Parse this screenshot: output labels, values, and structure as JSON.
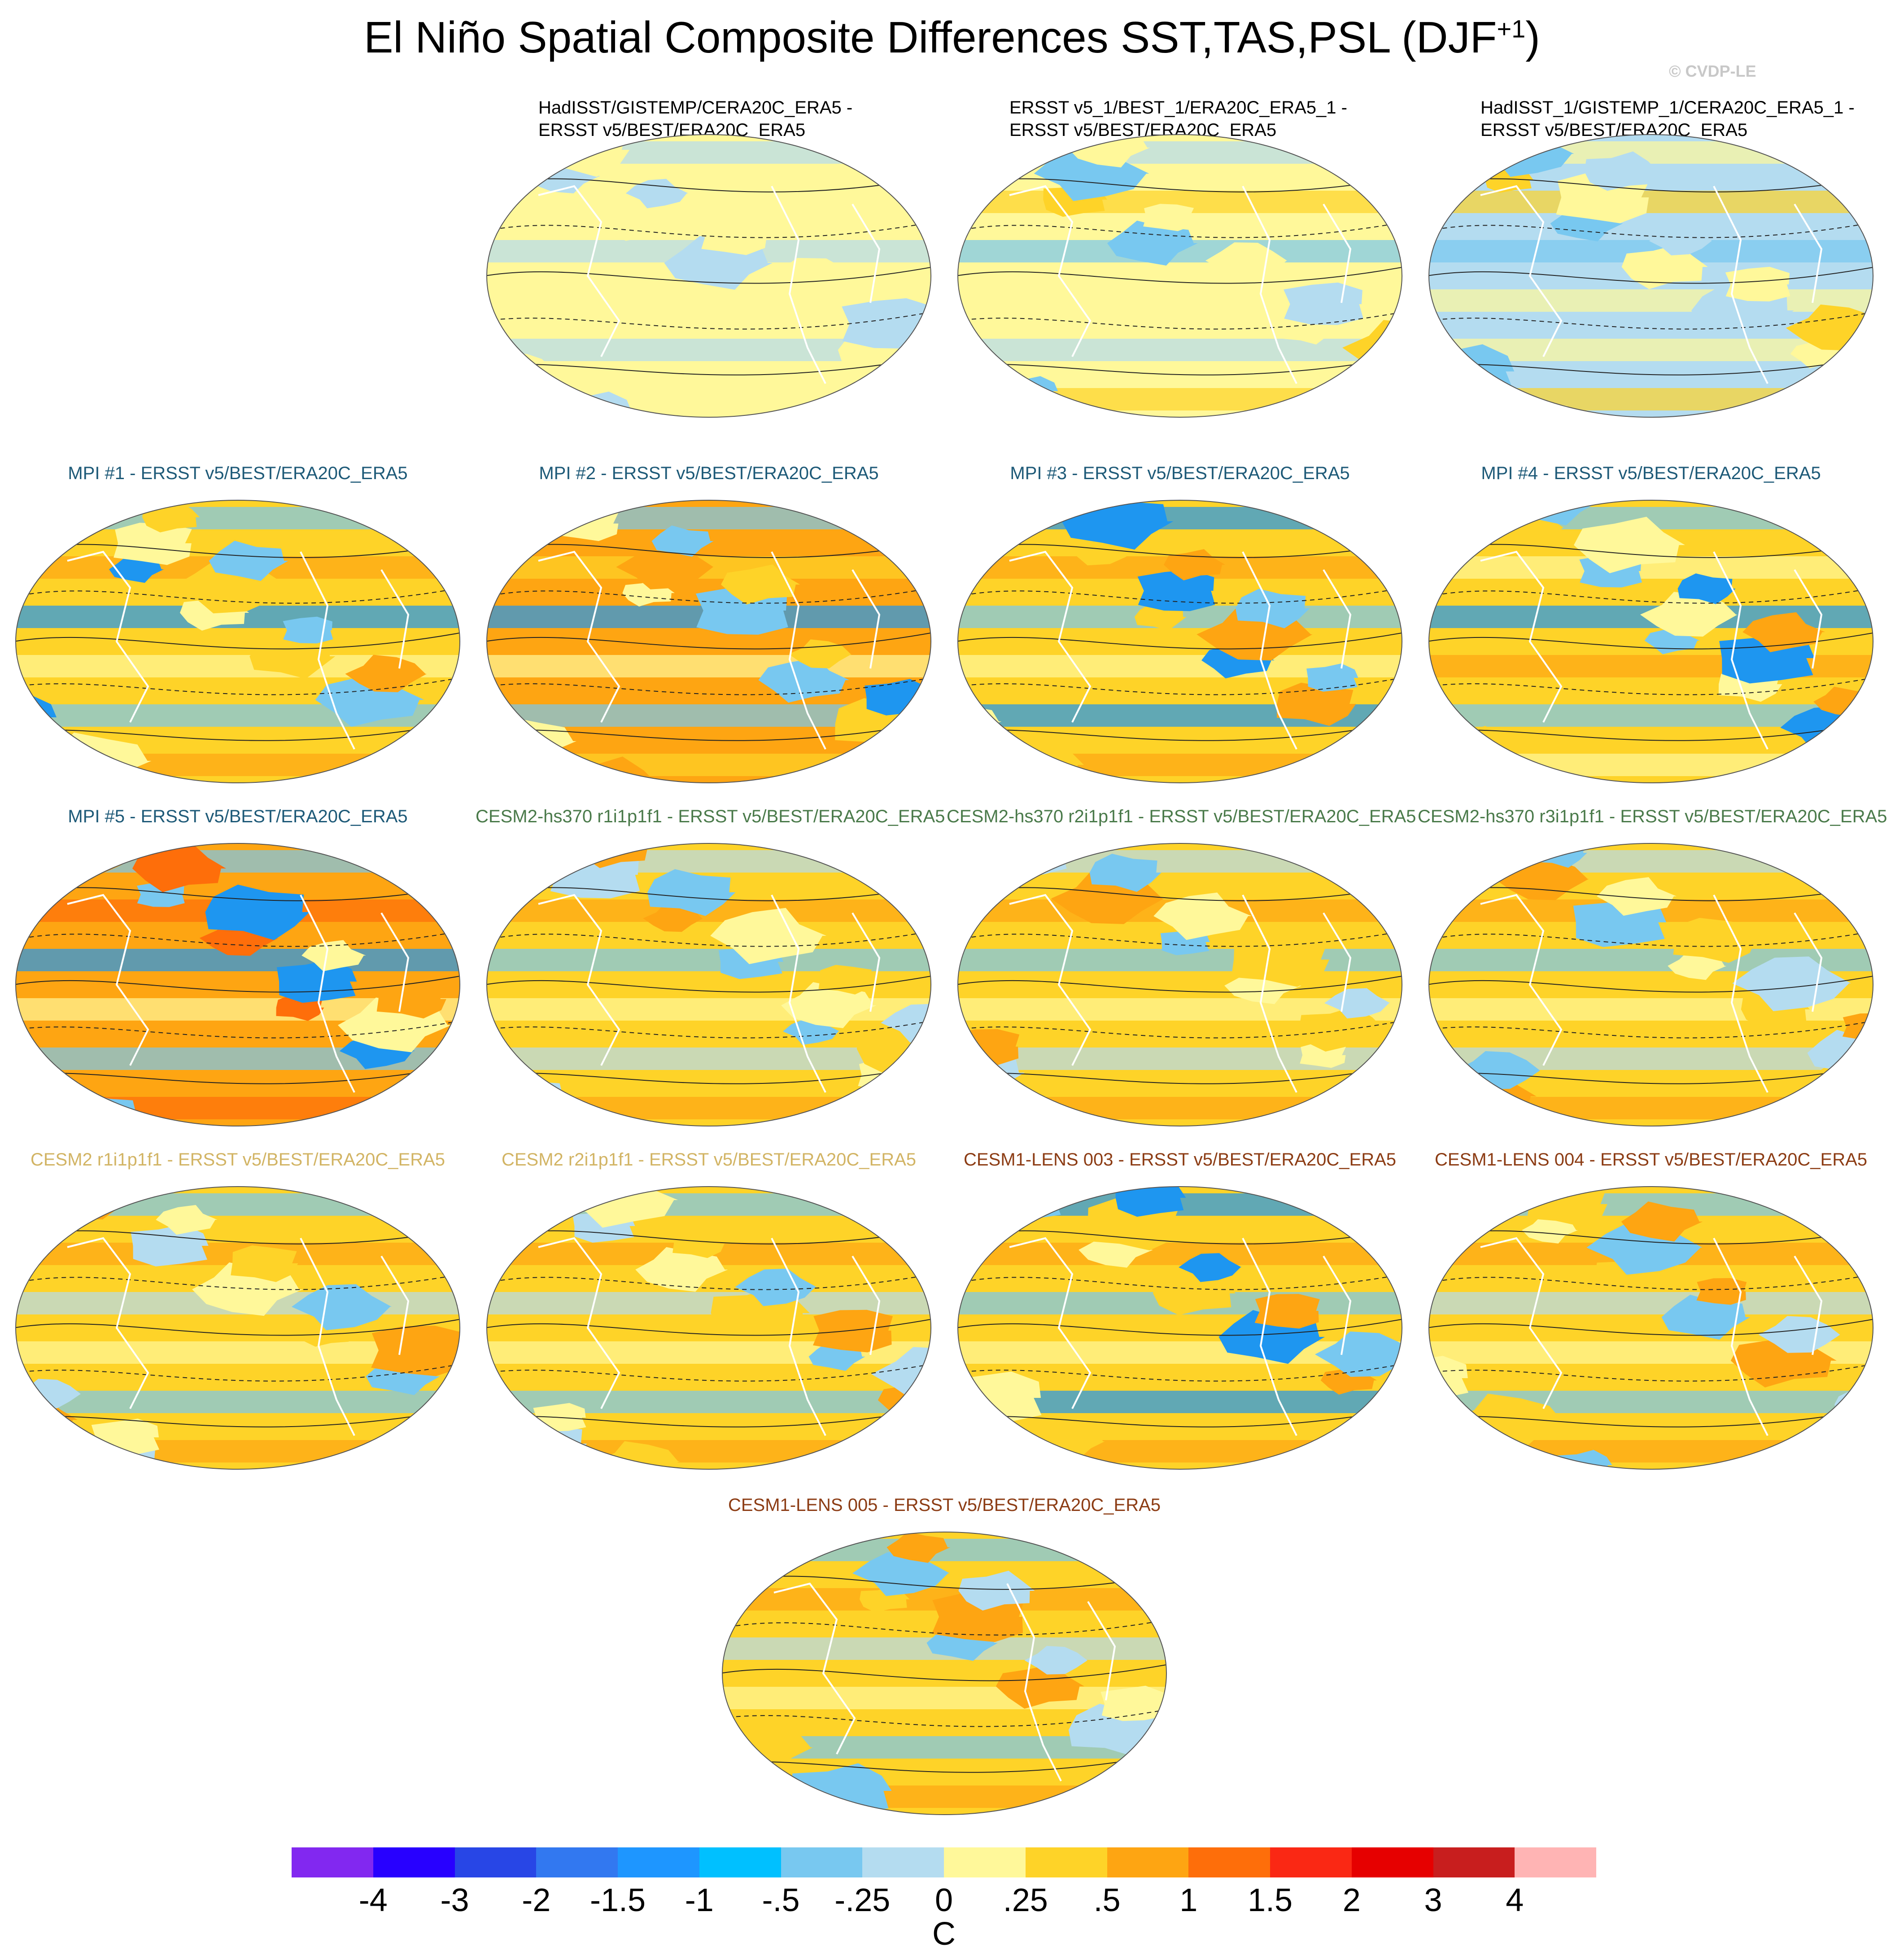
{
  "title": "El Niño Spatial Composite Differences SST,TAS,PSL (DJF",
  "title_sup": "+1",
  "title_close": ")",
  "credit": "© CVDP-LE",
  "panels": [
    {
      "title": "HadISST/GISTEMP/CERA20C_ERA5 -\nERSST v5/BEST/ERA20C_ERA5",
      "color": "#000000",
      "palette": [
        "#fff89a",
        "#b4dcf0",
        "#fff89a",
        "#b4dcf0",
        "#fff89a"
      ]
    },
    {
      "title": "ERSST v5_1/BEST_1/ERA20C_ERA5_1 -\nERSST v5/BEST/ERA20C_ERA5",
      "color": "#000000",
      "palette": [
        "#fff89a",
        "#b4dcf0",
        "#fed328",
        "#78c8f0",
        "#fff89a"
      ]
    },
    {
      "title": "HadISST_1/GISTEMP_1/CERA20C_ERA5_1 -\nERSST v5/BEST/ERA20C_ERA5",
      "color": "#000000",
      "palette": [
        "#b4dcf0",
        "#fff89a",
        "#fed328",
        "#78c8f0",
        "#fff89a"
      ]
    },
    {
      "title": "MPI #1 - ERSST v5/BEST/ERA20C_ERA5",
      "color": "#1e5a78",
      "palette": [
        "#fed328",
        "#78c8f0",
        "#fea512",
        "#1e96f0",
        "#fff89a"
      ]
    },
    {
      "title": "MPI #2 - ERSST v5/BEST/ERA20C_ERA5",
      "color": "#1e5a78",
      "palette": [
        "#fea512",
        "#78c8f0",
        "#fed328",
        "#1e96f0",
        "#fff89a"
      ]
    },
    {
      "title": "MPI #3 - ERSST v5/BEST/ERA20C_ERA5",
      "color": "#1e5a78",
      "palette": [
        "#fed328",
        "#1e96f0",
        "#fea512",
        "#78c8f0",
        "#fff89a"
      ]
    },
    {
      "title": "MPI #4 - ERSST v5/BEST/ERA20C_ERA5",
      "color": "#1e5a78",
      "palette": [
        "#fed328",
        "#78c8f0",
        "#fff89a",
        "#1e96f0",
        "#fea512"
      ]
    },
    {
      "title": "MPI #5 - ERSST v5/BEST/ERA20C_ERA5",
      "color": "#1e5a78",
      "palette": [
        "#fea512",
        "#78c8f0",
        "#fe6e0a",
        "#1e96f0",
        "#fff89a"
      ]
    },
    {
      "title": "CESM2-hs370 r1i1p1f1 - ERSST v5/BEST/ERA20C_ERA5",
      "color": "#4a7a4a",
      "palette": [
        "#fed328",
        "#b4dcf0",
        "#fea512",
        "#78c8f0",
        "#fff89a"
      ]
    },
    {
      "title": "CESM2-hs370 r2i1p1f1 - ERSST v5/BEST/ERA20C_ERA5",
      "color": "#4a7a4a",
      "palette": [
        "#fed328",
        "#b4dcf0",
        "#fea512",
        "#78c8f0",
        "#fff89a"
      ]
    },
    {
      "title": "CESM2-hs370 r3i1p1f1 - ERSST v5/BEST/ERA20C_ERA5",
      "color": "#4a7a4a",
      "palette": [
        "#fed328",
        "#b4dcf0",
        "#fea512",
        "#78c8f0",
        "#fff89a"
      ]
    },
    {
      "title": "CESM2 r1i1p1f1 - ERSST v5/BEST/ERA20C_ERA5",
      "color": "#d2b464",
      "palette": [
        "#fed328",
        "#78c8f0",
        "#fea512",
        "#b4dcf0",
        "#fff89a"
      ]
    },
    {
      "title": "CESM2 r2i1p1f1 - ERSST v5/BEST/ERA20C_ERA5",
      "color": "#d2b464",
      "palette": [
        "#fed328",
        "#78c8f0",
        "#fea512",
        "#b4dcf0",
        "#fff89a"
      ]
    },
    {
      "title": "CESM1-LENS 003 - ERSST v5/BEST/ERA20C_ERA5",
      "color": "#8c3c14",
      "palette": [
        "#fed328",
        "#1e96f0",
        "#fea512",
        "#78c8f0",
        "#fff89a"
      ]
    },
    {
      "title": "CESM1-LENS 004 - ERSST v5/BEST/ERA20C_ERA5",
      "color": "#8c3c14",
      "palette": [
        "#fed328",
        "#78c8f0",
        "#fea512",
        "#b4dcf0",
        "#fff89a"
      ]
    },
    {
      "title": "CESM1-LENS 005 - ERSST v5/BEST/ERA20C_ERA5",
      "color": "#8c3c14",
      "palette": [
        "#fed328",
        "#78c8f0",
        "#fea512",
        "#b4dcf0",
        "#fff89a"
      ]
    }
  ],
  "colorbar": {
    "colors": [
      "#8228f0",
      "#2800ff",
      "#2846e6",
      "#3278f0",
      "#1e96ff",
      "#00c0ff",
      "#78c8f0",
      "#b4dcf0",
      "#fff89a",
      "#fed328",
      "#fea512",
      "#fe6e0a",
      "#fa2814",
      "#e60000",
      "#c81e1e",
      "#ffb4b4"
    ],
    "labels": [
      "-4",
      "-3",
      "-2",
      "-1.5",
      "-1",
      "-.5",
      "-.25",
      "0",
      ".25",
      ".5",
      "1",
      "1.5",
      "2",
      "3",
      "4"
    ],
    "unit": "C"
  }
}
